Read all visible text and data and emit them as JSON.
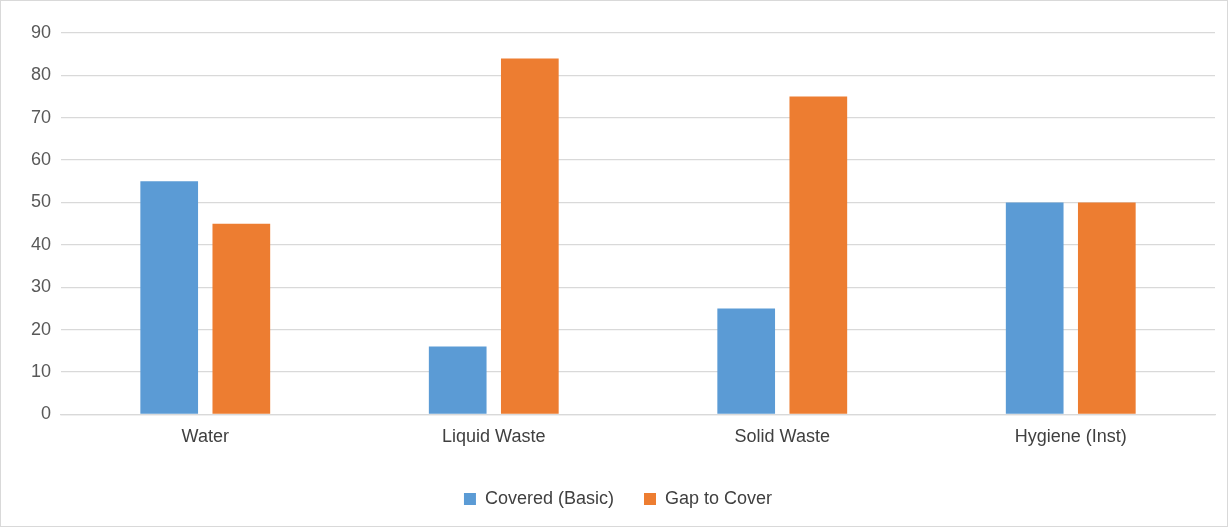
{
  "chart_data": {
    "type": "bar",
    "categories": [
      "Water",
      "Liquid Waste",
      "Solid Waste",
      "Hygiene (Inst)"
    ],
    "series": [
      {
        "name": "Covered (Basic)",
        "color": "#5b9bd5",
        "values": [
          55,
          16,
          25,
          50
        ]
      },
      {
        "name": "Gap to Cover",
        "color": "#ed7d31",
        "values": [
          45,
          84,
          75,
          50
        ]
      }
    ],
    "ylim": [
      0,
      90
    ],
    "yticks": [
      0,
      10,
      20,
      30,
      40,
      50,
      60,
      70,
      80,
      90
    ],
    "grid": "y",
    "legend": "bottom"
  }
}
